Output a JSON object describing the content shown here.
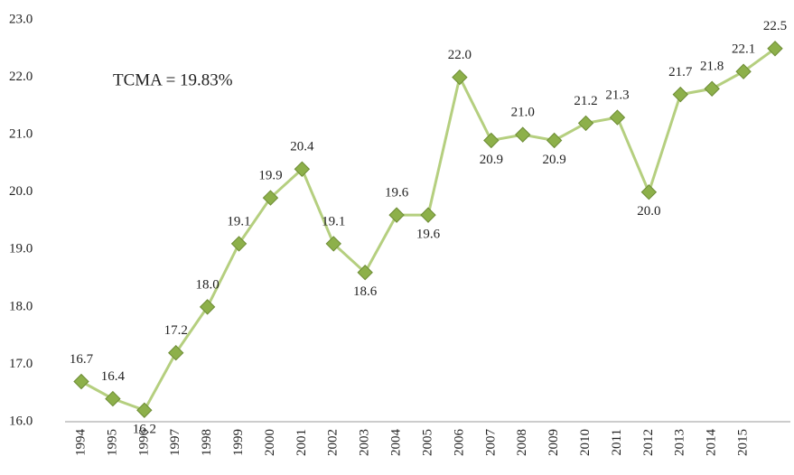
{
  "chart_data": {
    "type": "line",
    "annotation": "TCMA = 19.83%",
    "categories": [
      "1994",
      "1995",
      "1996",
      "1997",
      "1998",
      "1999",
      "2000",
      "2001",
      "2002",
      "2003",
      "2004",
      "2005",
      "2006",
      "2007",
      "2008",
      "2009",
      "2010",
      "2011",
      "2012",
      "2013",
      "2014",
      "2015",
      null
    ],
    "series": [
      {
        "color": "#8db04a",
        "values": [
          16.7,
          16.4,
          16.2,
          17.2,
          18.0,
          19.1,
          19.9,
          20.4,
          19.1,
          18.6,
          19.6,
          19.6,
          22.0,
          20.9,
          21.0,
          20.9,
          21.2,
          21.3,
          20.0,
          21.7,
          21.8,
          22.1,
          22.5
        ],
        "value_labels": [
          "16.7",
          "16.4",
          "16.2",
          "17.2",
          "18.0",
          "19.1",
          "19.9",
          "20.4",
          "19.1",
          "18.6",
          "19.6",
          "19.6",
          "22.0",
          "20.9",
          "21.0",
          "20.9",
          "21.2",
          "21.3",
          "20.0",
          "21.7",
          "21.8",
          "22.1",
          "22.5"
        ]
      }
    ],
    "ylim": [
      16,
      23
    ],
    "yticks": [
      {
        "value": 16,
        "label": "16.0"
      },
      {
        "value": 17,
        "label": "17.0"
      },
      {
        "value": 18,
        "label": "18.0"
      },
      {
        "value": 19,
        "label": "19.0"
      },
      {
        "value": 20,
        "label": "20.0"
      },
      {
        "value": 21,
        "label": "21.0"
      },
      {
        "value": 22,
        "label": "22.0"
      },
      {
        "value": 23,
        "label": "23.0"
      }
    ],
    "grid": false
  }
}
